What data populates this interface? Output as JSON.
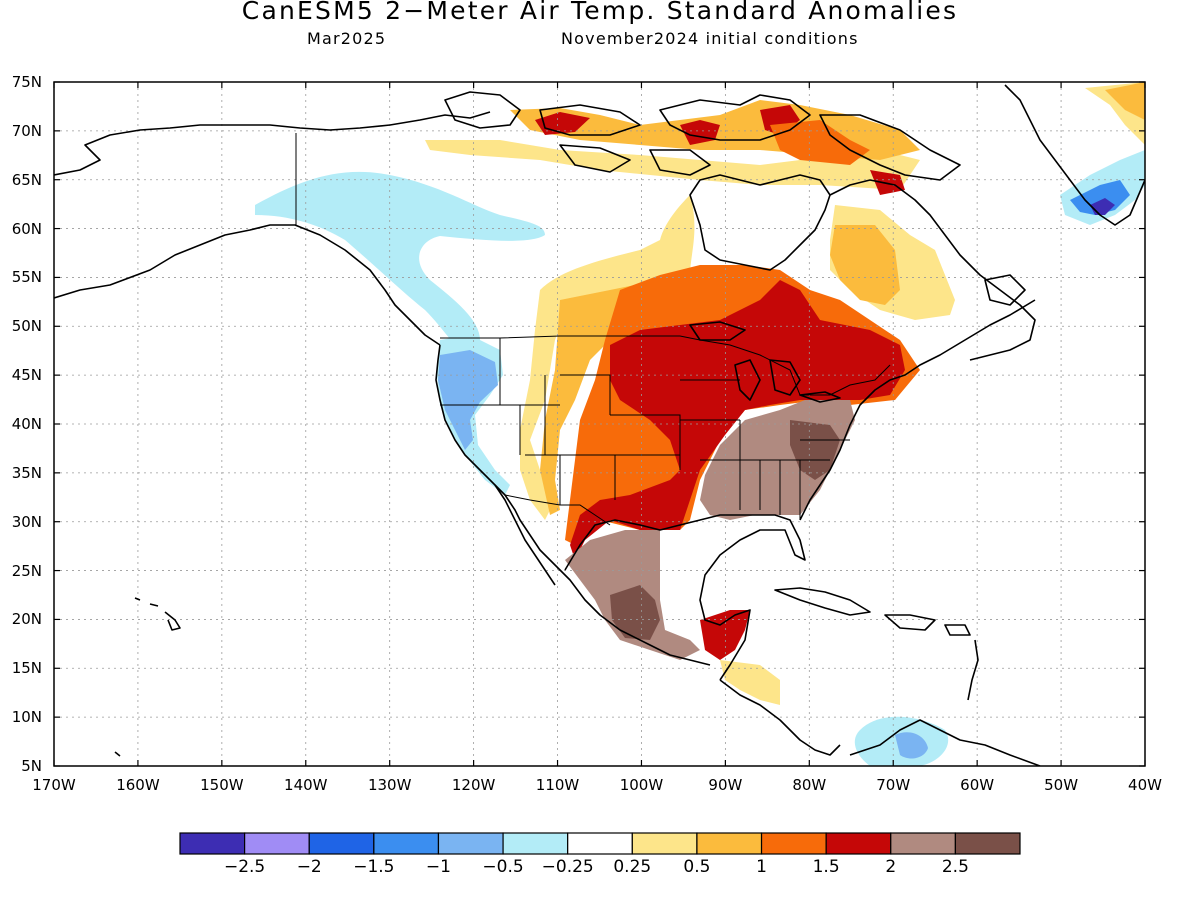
{
  "title": "CanESM5 2−Meter Air Temp. Standard Anomalies",
  "subtitle_left": "Mar2025",
  "subtitle_right": "November2024 initial conditions",
  "lat_labels": [
    "75N",
    "70N",
    "65N",
    "60N",
    "55N",
    "50N",
    "45N",
    "40N",
    "35N",
    "30N",
    "25N",
    "20N",
    "15N",
    "10N",
    "5N"
  ],
  "lon_labels": [
    "170W",
    "160W",
    "150W",
    "140W",
    "130W",
    "120W",
    "110W",
    "100W",
    "90W",
    "80W",
    "70W",
    "60W",
    "50W",
    "40W"
  ],
  "colorbar": {
    "colors": [
      "#3d2db3",
      "#a08cf5",
      "#1f64e6",
      "#3b8ef0",
      "#7ab4f2",
      "#b3ecf7",
      "#ffffff",
      "#fde58a",
      "#fbbb3d",
      "#f76b0a",
      "#c50707",
      "#b08a80",
      "#7a5048"
    ],
    "labels": [
      "−2.5",
      "−2",
      "−1.5",
      "−1",
      "−0.5",
      "−0.25",
      "0.25",
      "0.5",
      "1",
      "1.5",
      "2",
      "2.5"
    ]
  },
  "chart_data": {
    "type": "heatmap",
    "variable": "2-Meter Air Temp. Standard Anomalies",
    "model": "CanESM5",
    "valid": "Mar2025",
    "initial_conditions": "November2024",
    "lat_range": [
      5,
      75
    ],
    "lon_range": [
      -170,
      -40
    ],
    "grid": true,
    "regions": [
      {
        "name": "Alaska / NW Canada",
        "category": "-0.5 to -0.25"
      },
      {
        "name": "Pacific Northwest / California",
        "category": "-1 to -0.5"
      },
      {
        "name": "Upper Midwest / Great Lakes / New England",
        "category": "1.5 to 2"
      },
      {
        "name": "Southern Plains / Texas",
        "category": "1 to 2"
      },
      {
        "name": "Southeast US",
        "category": "2 to 2.5"
      },
      {
        "name": "Central Mexico",
        "category": "2 to >2.5"
      },
      {
        "name": "Labrador / Quebec",
        "category": "0.25 to 1.5"
      },
      {
        "name": "Southern Greenland",
        "category": "-2.5 to -0.5"
      },
      {
        "name": "Canadian Arctic Archipelago",
        "category": "0.25 to 2"
      },
      {
        "name": "Central America",
        "category": "0.25 to 2"
      },
      {
        "name": "Caribbean near Venezuela",
        "category": "-1 to -0.25"
      }
    ]
  }
}
